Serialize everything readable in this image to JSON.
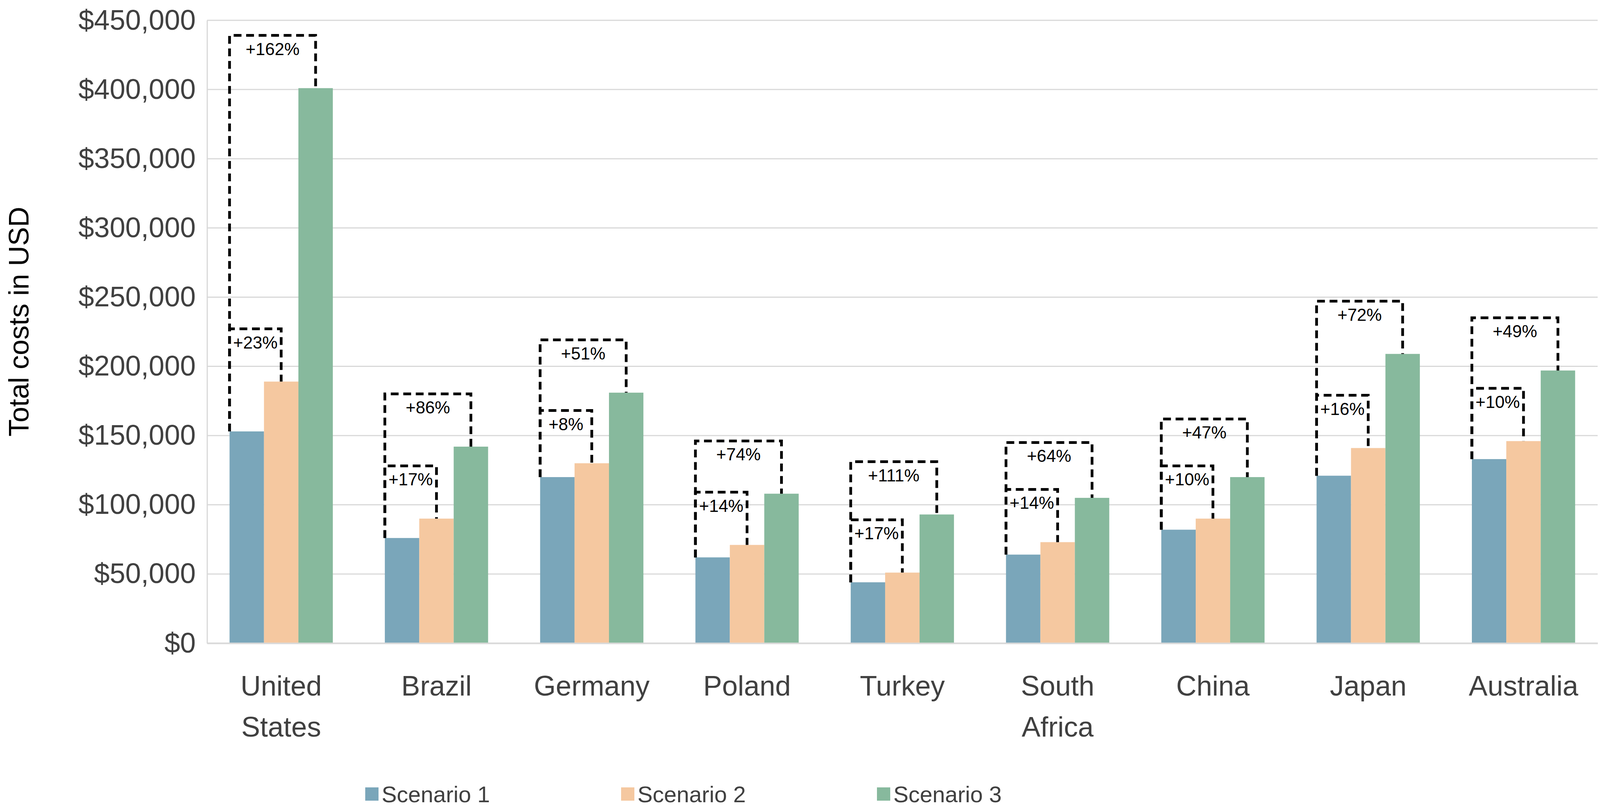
{
  "chart_data": {
    "type": "bar",
    "y_label": "Total costs in USD",
    "categories": [
      "United States",
      "Brazil",
      "Germany",
      "Poland",
      "Turkey",
      "South Africa",
      "China",
      "Japan",
      "Australia"
    ],
    "series": [
      {
        "name": "Scenario 1",
        "color": "#7aa6ba",
        "values": [
          153000,
          76000,
          120000,
          62000,
          44000,
          64000,
          82000,
          121000,
          133000
        ]
      },
      {
        "name": "Scenario 2",
        "color": "#f5c8a0",
        "values": [
          189000,
          90000,
          130000,
          71000,
          51000,
          73000,
          90000,
          141000,
          146000
        ],
        "increase_labels": [
          "+23%",
          "+17%",
          "+8%",
          "+14%",
          "+17%",
          "+14%",
          "+10%",
          "+16%",
          "+10%"
        ]
      },
      {
        "name": "Scenario 3",
        "color": "#87b99d",
        "values": [
          401000,
          142000,
          181000,
          108000,
          93000,
          105000,
          120000,
          209000,
          197000
        ],
        "increase_labels": [
          "+162%",
          "+86%",
          "+51%",
          "+74%",
          "+111%",
          "+64%",
          "+47%",
          "+72%",
          "+49%"
        ]
      }
    ],
    "ylim": [
      0,
      450000
    ],
    "yticks": [
      {
        "value": 0,
        "label": "$0"
      },
      {
        "value": 50000,
        "label": "$50,000"
      },
      {
        "value": 100000,
        "label": "$100,000"
      },
      {
        "value": 150000,
        "label": "$150,000"
      },
      {
        "value": 200000,
        "label": "$200,000"
      },
      {
        "value": 250000,
        "label": "$250,000"
      },
      {
        "value": 300000,
        "label": "$300,000"
      },
      {
        "value": 350000,
        "label": "$350,000"
      },
      {
        "value": 400000,
        "label": "$400,000"
      },
      {
        "value": 450000,
        "label": "$450,000"
      }
    ],
    "grid": true,
    "legend": "bottom"
  }
}
